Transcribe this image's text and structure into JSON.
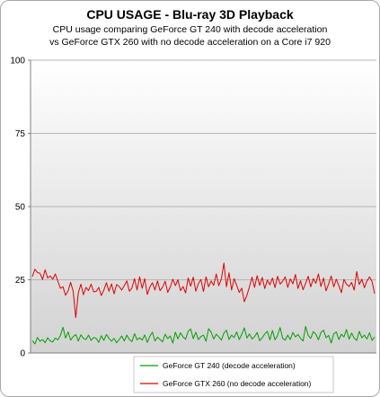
{
  "chart_data": {
    "type": "line",
    "title": "CPU USAGE - Blu-ray 3D Playback",
    "subtitle_lines": [
      "CPU usage comparing GeForce GT 240 with decode acceleration",
      "vs GeForce GTX 260 with no decode acceleration on a Core i7 920"
    ],
    "xlabel": "",
    "ylabel": "",
    "ylim": [
      0,
      100
    ],
    "yticks": [
      "0",
      "25",
      "50",
      "75",
      "100"
    ],
    "grid": true,
    "legend_position": "bottom",
    "series": [
      {
        "name": "GeForce GT 240 (decode acceleration)",
        "color": "#00a000",
        "values": [
          4.2,
          3.1,
          5.3,
          4.0,
          4.6,
          3.5,
          5.2,
          4.1,
          3.8,
          5.1,
          4.5,
          6.0,
          8.8,
          5.1,
          7.2,
          4.4,
          5.6,
          6.3,
          4.1,
          6.2,
          5.0,
          4.6,
          6.1,
          4.3,
          5.3,
          5.0,
          3.6,
          5.9,
          4.3,
          6.3,
          5.0,
          4.0,
          5.0,
          3.5,
          4.6,
          5.8,
          4.1,
          6.1,
          4.6,
          3.9,
          6.6,
          4.5,
          5.2,
          4.4,
          6.2,
          3.6,
          5.7,
          7.1,
          4.1,
          5.4,
          4.6,
          3.8,
          6.4,
          4.9,
          5.8,
          3.4,
          7.1,
          4.8,
          6.9,
          5.5,
          4.7,
          7.4,
          8.2,
          4.9,
          7.1,
          4.6,
          5.6,
          6.1,
          4.0,
          8.3,
          7.1,
          4.8,
          6.4,
          5.5,
          4.4,
          6.8,
          7.8,
          4.6,
          6.1,
          5.3,
          7.2,
          4.6,
          6.4,
          8.6,
          5.1,
          6.5,
          4.8,
          5.6,
          7.0,
          4.2,
          5.2,
          6.5,
          7.4,
          4.5,
          7.7,
          4.5,
          6.0,
          8.7,
          5.0,
          4.4,
          6.1,
          4.6,
          7.0,
          5.5,
          6.3,
          5.0,
          4.1,
          9.1,
          6.0,
          5.0,
          7.3,
          6.4,
          4.5,
          7.0,
          7.8,
          5.2,
          6.0,
          3.4,
          6.5,
          7.2,
          4.6,
          6.4,
          5.5,
          8.0,
          4.7,
          6.8,
          5.1,
          4.3,
          7.4,
          5.2,
          6.1,
          4.8,
          6.9,
          4.3,
          5.5
        ]
      },
      {
        "name": "GeForce GTX 260 (no decode acceleration)",
        "color": "#e00000",
        "values": [
          26.1,
          28.6,
          27.5,
          27.2,
          25.1,
          28.4,
          25.6,
          26.3,
          25.2,
          27.0,
          24.5,
          22.1,
          22.6,
          19.7,
          21.2,
          24.1,
          21.0,
          12.1,
          20.5,
          23.5,
          19.9,
          22.4,
          21.3,
          23.5,
          20.9,
          21.0,
          22.4,
          19.6,
          21.5,
          24.0,
          21.1,
          23.6,
          20.2,
          23.4,
          22.7,
          21.5,
          23.0,
          24.6,
          21.1,
          22.2,
          25.4,
          21.5,
          26.0,
          22.1,
          25.4,
          20.0,
          22.5,
          24.0,
          21.5,
          24.6,
          21.3,
          22.5,
          24.5,
          20.7,
          22.5,
          25.2,
          23.0,
          25.0,
          21.3,
          22.7,
          20.5,
          25.6,
          22.8,
          25.9,
          21.1,
          23.7,
          25.1,
          21.0,
          26.0,
          22.6,
          24.6,
          23.1,
          27.0,
          23.0,
          25.3,
          30.7,
          22.6,
          27.4,
          21.5,
          25.4,
          23.1,
          20.7,
          22.1,
          17.5,
          19.7,
          22.6,
          25.9,
          22.4,
          26.4,
          23.1,
          25.8,
          22.0,
          24.9,
          23.3,
          25.6,
          22.3,
          26.2,
          23.5,
          24.5,
          26.0,
          22.4,
          25.3,
          23.6,
          26.8,
          22.0,
          24.7,
          21.6,
          23.8,
          26.2,
          22.6,
          25.4,
          23.8,
          27.0,
          22.7,
          25.6,
          21.2,
          23.6,
          26.3,
          22.6,
          25.2,
          23.0,
          20.6,
          25.1,
          23.5,
          22.7,
          24.1,
          21.5,
          27.8,
          23.4,
          25.2,
          22.3,
          24.6,
          26.0,
          24.4,
          20.3
        ]
      }
    ]
  }
}
